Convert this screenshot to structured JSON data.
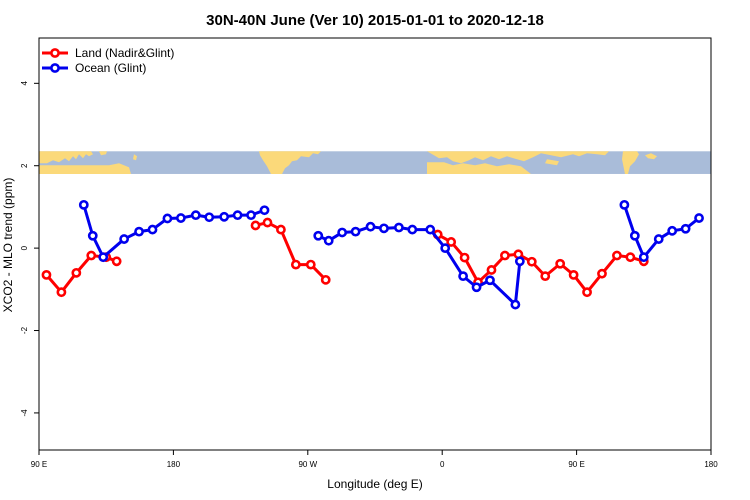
{
  "chart_data": {
    "type": "line",
    "title": "30N-40N June (Ver 10)   2015-01-01 to 2020-12-18",
    "xlabel": "Longitude (deg E)",
    "ylabel": "XCO2 - MLO trend (ppm)",
    "xlim": [
      90,
      540
    ],
    "ylim": [
      -4.9,
      5.1
    ],
    "x_ticks": [
      {
        "value": 90,
        "label": "90 E"
      },
      {
        "value": 180,
        "label": "180"
      },
      {
        "value": 270,
        "label": "90 W"
      },
      {
        "value": 360,
        "label": "0"
      },
      {
        "value": 450,
        "label": "90 E"
      },
      {
        "value": 540,
        "label": "180"
      }
    ],
    "y_ticks": [
      {
        "value": -4,
        "label": "-4"
      },
      {
        "value": -2,
        "label": "-2"
      },
      {
        "value": 0,
        "label": "0"
      },
      {
        "value": 2,
        "label": "2"
      },
      {
        "value": 4,
        "label": "4"
      }
    ],
    "legend_position": "top-left",
    "map_strip": {
      "ymin": 1.8,
      "ymax": 2.35,
      "ocean_color": "#a9bcd9",
      "land_color": "#fbd97a"
    },
    "series": [
      {
        "name": "Land (Nadir&Glint)",
        "color": "#ff0000",
        "segments": [
          [
            [
              95,
              -0.65
            ],
            [
              105,
              -1.07
            ],
            [
              115,
              -0.6
            ],
            [
              125,
              -0.18
            ],
            [
              135,
              -0.22
            ],
            [
              142,
              -0.32
            ]
          ],
          [
            [
              235,
              0.55
            ],
            [
              243,
              0.62
            ],
            [
              252,
              0.45
            ],
            [
              262,
              -0.4
            ],
            [
              272,
              -0.4
            ],
            [
              282,
              -0.77
            ]
          ],
          [
            [
              357,
              0.33
            ],
            [
              366,
              0.15
            ],
            [
              375,
              -0.23
            ],
            [
              384,
              -0.83
            ],
            [
              393,
              -0.53
            ],
            [
              402,
              -0.18
            ],
            [
              411,
              -0.15
            ],
            [
              420,
              -0.33
            ],
            [
              429,
              -0.68
            ],
            [
              439,
              -0.38
            ],
            [
              448,
              -0.65
            ],
            [
              457,
              -1.07
            ],
            [
              467,
              -0.62
            ],
            [
              477,
              -0.18
            ],
            [
              486,
              -0.22
            ],
            [
              495,
              -0.32
            ]
          ]
        ]
      },
      {
        "name": "Ocean (Glint)",
        "color": "#0000ee",
        "segments": [
          [
            [
              120,
              1.05
            ],
            [
              126,
              0.3
            ],
            [
              133,
              -0.22
            ],
            [
              147,
              0.22
            ],
            [
              157,
              0.4
            ],
            [
              166,
              0.45
            ],
            [
              176,
              0.72
            ],
            [
              185,
              0.73
            ],
            [
              195,
              0.8
            ],
            [
              204,
              0.75
            ],
            [
              214,
              0.76
            ],
            [
              223,
              0.8
            ],
            [
              232,
              0.8
            ],
            [
              241,
              0.92
            ]
          ],
          [
            [
              277,
              0.3
            ],
            [
              284,
              0.18
            ],
            [
              293,
              0.38
            ],
            [
              302,
              0.4
            ],
            [
              312,
              0.52
            ],
            [
              321,
              0.48
            ],
            [
              331,
              0.5
            ],
            [
              340,
              0.45
            ],
            [
              352,
              0.45
            ],
            [
              362,
              0.0
            ],
            [
              374,
              -0.68
            ],
            [
              383,
              -0.95
            ],
            [
              392,
              -0.78
            ],
            [
              409,
              -1.37
            ],
            [
              412,
              -0.32
            ]
          ],
          [
            [
              482,
              1.05
            ],
            [
              489,
              0.3
            ],
            [
              495,
              -0.22
            ],
            [
              505,
              0.22
            ],
            [
              514,
              0.42
            ],
            [
              523,
              0.47
            ],
            [
              532,
              0.73
            ]
          ]
        ]
      }
    ]
  }
}
